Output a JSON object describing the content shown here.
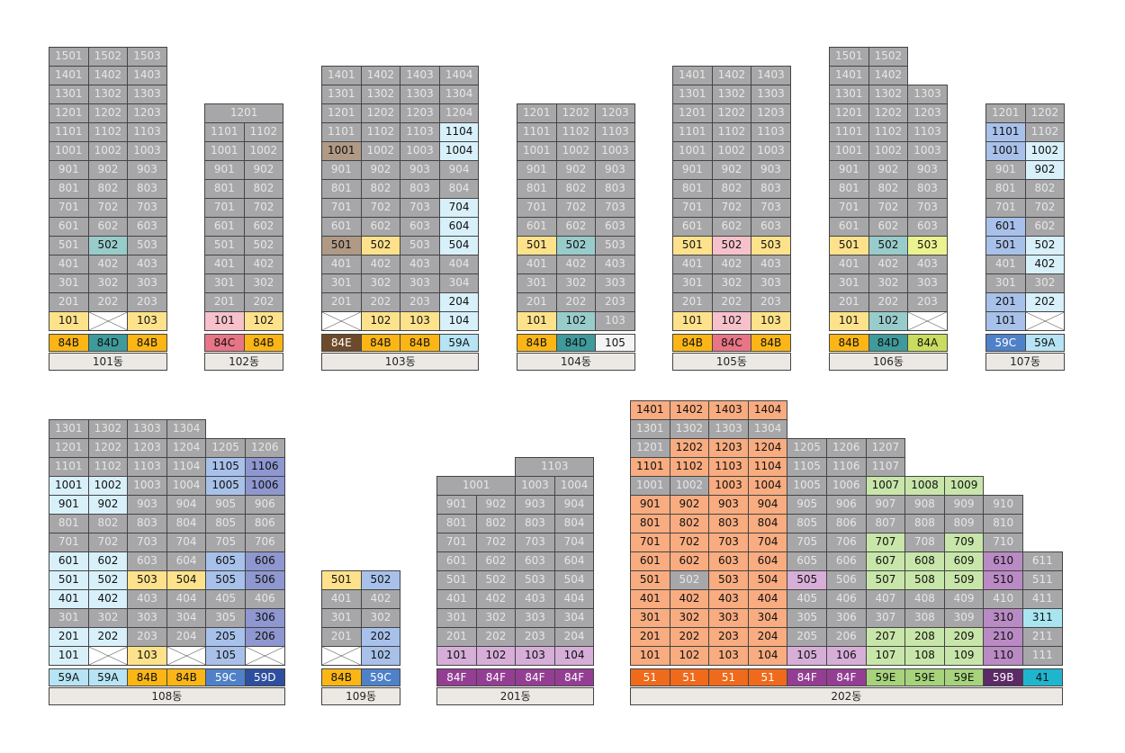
{
  "colors": {
    "sold": "#a7a7a9",
    "84B": "#fbb616",
    "84D": "#3f9a9b",
    "84C": "#e87585",
    "84E": "#6e4a2c",
    "84A": "#c9dc5f",
    "84F": "#933e93",
    "59A": "#b6e4f4",
    "59C": "#4f81c9",
    "59D": "#2e4f9f",
    "59E": "#a6d37b",
    "59B": "#5c2a67",
    "51": "#f06a1c",
    "41": "#1fb5cd",
    "105": "#f4f4f4"
  },
  "unit_fill": {
    "84B": "#fde28b",
    "84D": "#98cccb",
    "84C": "#f6c1cb",
    "84E": "#b09a86",
    "84A": "#ecf28f",
    "84F": "#d6aed8",
    "59A": "#d8f0fa",
    "59C": "#a8c1ea",
    "59D": "#8e97cf",
    "59E": "#c8e6aa",
    "59B": "#b98ac4",
    "51": "#f9ac80",
    "41": "#a9e5f1"
  },
  "buildings": [
    {
      "name": "101동",
      "columns": [
        "84B",
        "84D",
        "84B"
      ],
      "floors": [
        [
          "1501",
          "1502",
          "1503"
        ],
        [
          "1401",
          "1402",
          "1403"
        ],
        [
          "1301",
          "1302",
          "1303"
        ],
        [
          "1201",
          "1202",
          "1203"
        ],
        [
          "1101",
          "1102",
          "1103"
        ],
        [
          "1001",
          "1002",
          "1003"
        ],
        [
          "901",
          "902",
          "903"
        ],
        [
          "801",
          "802",
          "803"
        ],
        [
          "701",
          "702",
          "703"
        ],
        [
          "601",
          "602",
          "603"
        ],
        [
          "501",
          "*502",
          "503"
        ],
        [
          "401",
          "402",
          "403"
        ],
        [
          "301",
          "302",
          "303"
        ],
        [
          "201",
          "202",
          "203"
        ],
        [
          "*101",
          "X",
          "*103"
        ]
      ]
    },
    {
      "name": "102동",
      "columns": [
        "84C",
        "84B"
      ],
      "floors": [
        [
          "1201"
        ],
        [
          "1101",
          "1102"
        ],
        [
          "1001",
          "1002"
        ],
        [
          "901",
          "902"
        ],
        [
          "801",
          "802"
        ],
        [
          "701",
          "702"
        ],
        [
          "601",
          "602"
        ],
        [
          "501",
          "502"
        ],
        [
          "401",
          "402"
        ],
        [
          "301",
          "302"
        ],
        [
          "201",
          "202"
        ],
        [
          "*101",
          "*102"
        ]
      ]
    },
    {
      "name": "103동",
      "columns": [
        "84E",
        "84B",
        "84B",
        "59A"
      ],
      "floors": [
        [
          "1401",
          "1402",
          "1403",
          "1404"
        ],
        [
          "1301",
          "1302",
          "1303",
          "1304"
        ],
        [
          "1201",
          "1202",
          "1203",
          "1204"
        ],
        [
          "1101",
          "1102",
          "1103",
          "*1104"
        ],
        [
          "*1001",
          "1002",
          "1003",
          "*1004"
        ],
        [
          "901",
          "902",
          "903",
          "904"
        ],
        [
          "801",
          "802",
          "803",
          "804"
        ],
        [
          "701",
          "702",
          "703",
          "*704"
        ],
        [
          "601",
          "602",
          "603",
          "*604"
        ],
        [
          "*501",
          "*502",
          "503",
          "*504"
        ],
        [
          "401",
          "402",
          "403",
          "404"
        ],
        [
          "301",
          "302",
          "303",
          "304"
        ],
        [
          "201",
          "202",
          "203",
          "*204"
        ],
        [
          "X",
          "*102",
          "*103",
          "*104"
        ]
      ]
    },
    {
      "name": "104동",
      "columns": [
        "84B",
        "84D",
        "105"
      ],
      "floors": [
        [
          "1201",
          "1202",
          "1203"
        ],
        [
          "1101",
          "1102",
          "1103"
        ],
        [
          "1001",
          "1002",
          "1003"
        ],
        [
          "901",
          "902",
          "903"
        ],
        [
          "801",
          "802",
          "803"
        ],
        [
          "701",
          "702",
          "703"
        ],
        [
          "601",
          "602",
          "603"
        ],
        [
          "*501",
          "*502",
          "503"
        ],
        [
          "401",
          "402",
          "403"
        ],
        [
          "301",
          "302",
          "303"
        ],
        [
          "201",
          "202",
          "203"
        ],
        [
          "*101",
          "*102",
          "103"
        ]
      ]
    },
    {
      "name": "105동",
      "columns": [
        "84B",
        "84C",
        "84B"
      ],
      "floors": [
        [
          "1401",
          "1402",
          "1403"
        ],
        [
          "1301",
          "1302",
          "1303"
        ],
        [
          "1201",
          "1202",
          "1203"
        ],
        [
          "1101",
          "1102",
          "1103"
        ],
        [
          "1001",
          "1002",
          "1003"
        ],
        [
          "901",
          "902",
          "903"
        ],
        [
          "801",
          "802",
          "803"
        ],
        [
          "701",
          "702",
          "703"
        ],
        [
          "601",
          "602",
          "603"
        ],
        [
          "*501",
          "*502",
          "*503"
        ],
        [
          "401",
          "402",
          "403"
        ],
        [
          "301",
          "302",
          "303"
        ],
        [
          "201",
          "202",
          "203"
        ],
        [
          "*101",
          "*102",
          "*103"
        ]
      ]
    },
    {
      "name": "106동",
      "columns": [
        "84B",
        "84D",
        "84A"
      ],
      "floors": [
        [
          "1501",
          "1502"
        ],
        [
          "1401",
          "1402"
        ],
        [
          "1301",
          "1302",
          "1303"
        ],
        [
          "1201",
          "1202",
          "1203"
        ],
        [
          "1101",
          "1102",
          "1103"
        ],
        [
          "1001",
          "1002",
          "1003"
        ],
        [
          "901",
          "902",
          "903"
        ],
        [
          "801",
          "802",
          "803"
        ],
        [
          "701",
          "702",
          "703"
        ],
        [
          "601",
          "602",
          "603"
        ],
        [
          "*501",
          "*502",
          "*503"
        ],
        [
          "401",
          "402",
          "403"
        ],
        [
          "301",
          "302",
          "303"
        ],
        [
          "201",
          "202",
          "203"
        ],
        [
          "*101",
          "*102",
          "X"
        ]
      ]
    },
    {
      "name": "107동",
      "columns": [
        "59C",
        "59A"
      ],
      "floors": [
        [
          "1201",
          "1202"
        ],
        [
          "*1101",
          "1102"
        ],
        [
          "*1001",
          "*1002"
        ],
        [
          "901",
          "*902"
        ],
        [
          "801",
          "802"
        ],
        [
          "701",
          "702"
        ],
        [
          "*601",
          "602"
        ],
        [
          "*501",
          "*502"
        ],
        [
          "401",
          "*402"
        ],
        [
          "301",
          "302"
        ],
        [
          "*201",
          "*202"
        ],
        [
          "*101",
          "X"
        ]
      ]
    },
    {
      "name": "108동",
      "columns": [
        "59A",
        "59A",
        "84B",
        "84B",
        "59C",
        "59D"
      ],
      "floors": [
        [
          "1301",
          "1302",
          "1303",
          "1304"
        ],
        [
          "1201",
          "1202",
          "1203",
          "1204",
          "1205",
          "1206"
        ],
        [
          "1101",
          "1102",
          "1103",
          "1104",
          "*1105",
          "*1106"
        ],
        [
          "*1001",
          "*1002",
          "1003",
          "1004",
          "*1005",
          "*1006"
        ],
        [
          "*901",
          "*902",
          "903",
          "904",
          "905",
          "906"
        ],
        [
          "801",
          "802",
          "803",
          "804",
          "805",
          "806"
        ],
        [
          "701",
          "702",
          "703",
          "704",
          "705",
          "706"
        ],
        [
          "*601",
          "*602",
          "603",
          "604",
          "*605",
          "*606"
        ],
        [
          "*501",
          "*502",
          "*503",
          "*504",
          "*505",
          "*506"
        ],
        [
          "*401",
          "*402",
          "403",
          "404",
          "405",
          "406"
        ],
        [
          "301",
          "302",
          "303",
          "304",
          "305",
          "*306"
        ],
        [
          "*201",
          "*202",
          "203",
          "204",
          "*205",
          "*206"
        ],
        [
          "*101",
          "X",
          "*103",
          "X",
          "*105",
          "X"
        ]
      ]
    },
    {
      "name": "109동",
      "columns": [
        "84B",
        "59C"
      ],
      "floors": [
        [
          "*501",
          "*502"
        ],
        [
          "401",
          "402"
        ],
        [
          "301",
          "302"
        ],
        [
          "201",
          "*202"
        ],
        [
          "X",
          "*102"
        ]
      ]
    },
    {
      "name": "201동",
      "columns": [
        "84F",
        "84F",
        "84F",
        "84F"
      ],
      "floors": [
        [
          "",
          "",
          "1103"
        ],
        [
          "1001",
          "",
          "1003",
          "1004"
        ],
        [
          "901",
          "902",
          "903",
          "904"
        ],
        [
          "801",
          "802",
          "803",
          "804"
        ],
        [
          "701",
          "702",
          "703",
          "704"
        ],
        [
          "601",
          "602",
          "603",
          "604"
        ],
        [
          "501",
          "502",
          "503",
          "504"
        ],
        [
          "401",
          "402",
          "403",
          "404"
        ],
        [
          "301",
          "302",
          "303",
          "304"
        ],
        [
          "201",
          "202",
          "203",
          "204"
        ],
        [
          "*101",
          "*102",
          "*103",
          "*104"
        ]
      ]
    },
    {
      "name": "202동",
      "columns": [
        "51",
        "51",
        "51",
        "51",
        "84F",
        "84F",
        "59E",
        "59E",
        "59E",
        "59B",
        "41"
      ],
      "floors": [
        [
          "*1401",
          "*1402",
          "*1403",
          "*1404"
        ],
        [
          "1301",
          "1302",
          "1303",
          "1304"
        ],
        [
          "1201",
          "*1202",
          "*1203",
          "*1204",
          "1205",
          "1206",
          "1207"
        ],
        [
          "*1101",
          "*1102",
          "*1103",
          "*1104",
          "1105",
          "1106",
          "1107"
        ],
        [
          "1001",
          "1002",
          "*1003",
          "*1004",
          "1005",
          "1006",
          "*1007",
          "*1008",
          "*1009"
        ],
        [
          "*901",
          "*902",
          "*903",
          "*904",
          "905",
          "906",
          "907",
          "908",
          "909",
          "910"
        ],
        [
          "*801",
          "*802",
          "*803",
          "*804",
          "805",
          "806",
          "807",
          "808",
          "809",
          "810"
        ],
        [
          "*701",
          "*702",
          "*703",
          "*704",
          "705",
          "706",
          "*707",
          "708",
          "*709",
          "710"
        ],
        [
          "*601",
          "*602",
          "*603",
          "*604",
          "605",
          "606",
          "*607",
          "*608",
          "*609",
          "*610",
          "611"
        ],
        [
          "*501",
          "502",
          "*503",
          "*504",
          "*505",
          "506",
          "*507",
          "*508",
          "*509",
          "*510",
          "511"
        ],
        [
          "*401",
          "*402",
          "*403",
          "*404",
          "405",
          "406",
          "407",
          "408",
          "409",
          "410",
          "411"
        ],
        [
          "*301",
          "*302",
          "*303",
          "*304",
          "305",
          "306",
          "307",
          "308",
          "309",
          "*310",
          "*311"
        ],
        [
          "*201",
          "*202",
          "*203",
          "*204",
          "205",
          "206",
          "*207",
          "*208",
          "*209",
          "*210",
          "211"
        ],
        [
          "*101",
          "*102",
          "*103",
          "*104",
          "*105",
          "*106",
          "*107",
          "*108",
          "*109",
          "*110",
          "111"
        ]
      ]
    }
  ]
}
